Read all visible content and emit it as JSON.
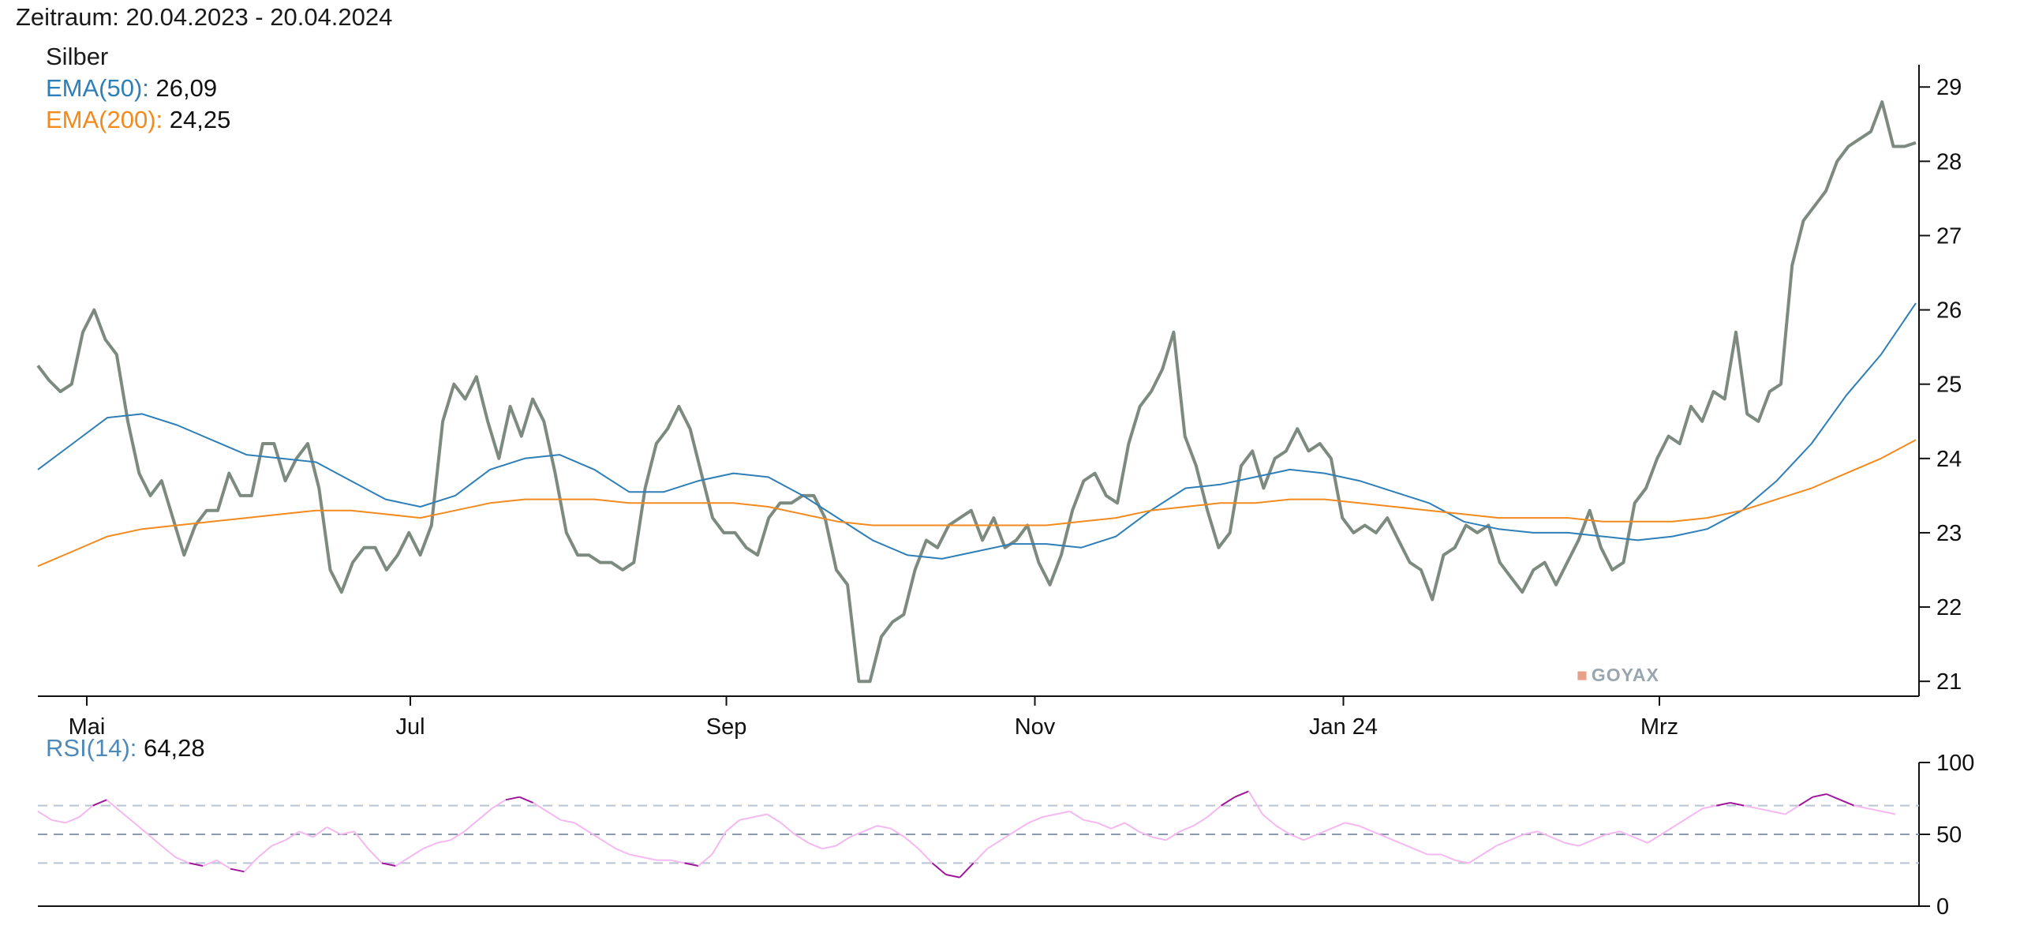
{
  "header": {
    "period": "Zeitraum: 20.04.2023 - 20.04.2024"
  },
  "legend": {
    "title": "Silber",
    "ema50_label": "EMA(50):",
    "ema50_value": "26,09",
    "ema200_label": "EMA(200):",
    "ema200_value": "24,25",
    "rsi_label": "RSI(14):",
    "rsi_value": "64,28"
  },
  "watermark": "GOYAX",
  "colors": {
    "price": "#7c8a80",
    "ema50": "#2e7fb8",
    "ema200": "#f28a1e",
    "rsi": "#f4b8f0",
    "rsi_extreme": "#a0159a",
    "guide": "#b9c4d2"
  },
  "chart_data": [
    {
      "type": "line",
      "x_ticks": [
        "Mai",
        "Jul",
        "Sep",
        "Nov",
        "Jan 24",
        "Mrz"
      ],
      "y_ticks": [
        21,
        22,
        23,
        24,
        25,
        26,
        27,
        28,
        29
      ],
      "ylim": [
        20.8,
        29.3
      ],
      "series": [
        {
          "name": "Silber",
          "values": [
            25.25,
            25.05,
            24.9,
            25.0,
            25.7,
            26.0,
            25.6,
            25.4,
            24.5,
            23.8,
            23.5,
            23.7,
            23.2,
            22.7,
            23.1,
            23.3,
            23.3,
            23.8,
            23.5,
            23.5,
            24.2,
            24.2,
            23.7,
            24.0,
            24.2,
            23.6,
            22.5,
            22.2,
            22.6,
            22.8,
            22.8,
            22.5,
            22.7,
            23.0,
            22.7,
            23.1,
            24.5,
            25.0,
            24.8,
            25.1,
            24.5,
            24.0,
            24.7,
            24.3,
            24.8,
            24.5,
            23.8,
            23.0,
            22.7,
            22.7,
            22.6,
            22.6,
            22.5,
            22.6,
            23.6,
            24.2,
            24.4,
            24.7,
            24.4,
            23.8,
            23.2,
            23.0,
            23.0,
            22.8,
            22.7,
            23.2,
            23.4,
            23.4,
            23.5,
            23.5,
            23.2,
            22.5,
            22.3,
            21.0,
            21.0,
            21.6,
            21.8,
            21.9,
            22.5,
            22.9,
            22.8,
            23.1,
            23.2,
            23.3,
            22.9,
            23.2,
            22.8,
            22.9,
            23.1,
            22.6,
            22.3,
            22.7,
            23.3,
            23.7,
            23.8,
            23.5,
            23.4,
            24.2,
            24.7,
            24.9,
            25.2,
            25.7,
            24.3,
            23.9,
            23.3,
            22.8,
            23.0,
            23.9,
            24.1,
            23.6,
            24.0,
            24.1,
            24.4,
            24.1,
            24.2,
            24.0,
            23.2,
            23.0,
            23.1,
            23.0,
            23.2,
            22.9,
            22.6,
            22.5,
            22.1,
            22.7,
            22.8,
            23.1,
            23.0,
            23.1,
            22.6,
            22.4,
            22.2,
            22.5,
            22.6,
            22.3,
            22.6,
            22.9,
            23.3,
            22.8,
            22.5,
            22.6,
            23.4,
            23.6,
            24.0,
            24.3,
            24.2,
            24.7,
            24.5,
            24.9,
            24.8,
            25.7,
            24.6,
            24.5,
            24.9,
            25.0,
            26.6,
            27.2,
            27.4,
            27.6,
            28.0,
            28.2,
            28.3,
            28.4,
            28.8,
            28.2,
            28.2,
            28.25
          ]
        },
        {
          "name": "EMA(50)",
          "values": [
            23.85,
            24.2,
            24.55,
            24.6,
            24.45,
            24.25,
            24.05,
            24.0,
            23.95,
            23.7,
            23.45,
            23.35,
            23.5,
            23.85,
            24.0,
            24.05,
            23.85,
            23.55,
            23.55,
            23.7,
            23.8,
            23.75,
            23.5,
            23.2,
            22.9,
            22.7,
            22.65,
            22.75,
            22.85,
            22.85,
            22.8,
            22.95,
            23.3,
            23.6,
            23.65,
            23.75,
            23.85,
            23.8,
            23.7,
            23.55,
            23.4,
            23.15,
            23.05,
            23.0,
            23.0,
            22.95,
            22.9,
            22.95,
            23.05,
            23.3,
            23.7,
            24.2,
            24.85,
            25.4,
            26.09
          ]
        },
        {
          "name": "EMA(200)",
          "values": [
            22.55,
            22.75,
            22.95,
            23.05,
            23.1,
            23.15,
            23.2,
            23.25,
            23.3,
            23.3,
            23.25,
            23.2,
            23.3,
            23.4,
            23.45,
            23.45,
            23.45,
            23.4,
            23.4,
            23.4,
            23.4,
            23.35,
            23.25,
            23.15,
            23.1,
            23.1,
            23.1,
            23.1,
            23.1,
            23.1,
            23.15,
            23.2,
            23.3,
            23.35,
            23.4,
            23.4,
            23.45,
            23.45,
            23.4,
            23.35,
            23.3,
            23.25,
            23.2,
            23.2,
            23.2,
            23.15,
            23.15,
            23.15,
            23.2,
            23.3,
            23.45,
            23.6,
            23.8,
            24.0,
            24.25
          ]
        }
      ]
    },
    {
      "type": "line",
      "y_ticks": [
        0,
        50,
        100
      ],
      "ylim": [
        0,
        100
      ],
      "guides": [
        30,
        50,
        70
      ],
      "series": [
        {
          "name": "RSI(14)",
          "values": [
            66,
            60,
            58,
            62,
            70,
            74,
            66,
            58,
            50,
            42,
            34,
            30,
            28,
            32,
            26,
            24,
            34,
            42,
            46,
            52,
            48,
            55,
            50,
            52,
            40,
            30,
            28,
            34,
            40,
            44,
            46,
            52,
            60,
            68,
            74,
            76,
            72,
            66,
            60,
            58,
            52,
            46,
            40,
            36,
            34,
            32,
            32,
            30,
            28,
            36,
            52,
            60,
            62,
            64,
            58,
            50,
            44,
            40,
            42,
            48,
            52,
            56,
            54,
            48,
            40,
            30,
            22,
            20,
            30,
            40,
            46,
            52,
            58,
            62,
            64,
            66,
            60,
            58,
            54,
            58,
            52,
            48,
            46,
            52,
            56,
            62,
            70,
            76,
            80,
            64,
            56,
            50,
            46,
            50,
            54,
            58,
            56,
            52,
            48,
            44,
            40,
            36,
            36,
            32,
            30,
            36,
            42,
            46,
            50,
            52,
            48,
            44,
            42,
            46,
            50,
            52,
            48,
            44,
            50,
            56,
            62,
            68,
            70,
            72,
            70,
            68,
            66,
            64,
            70,
            76,
            78,
            74,
            70,
            68,
            66,
            64
          ]
        }
      ]
    }
  ]
}
